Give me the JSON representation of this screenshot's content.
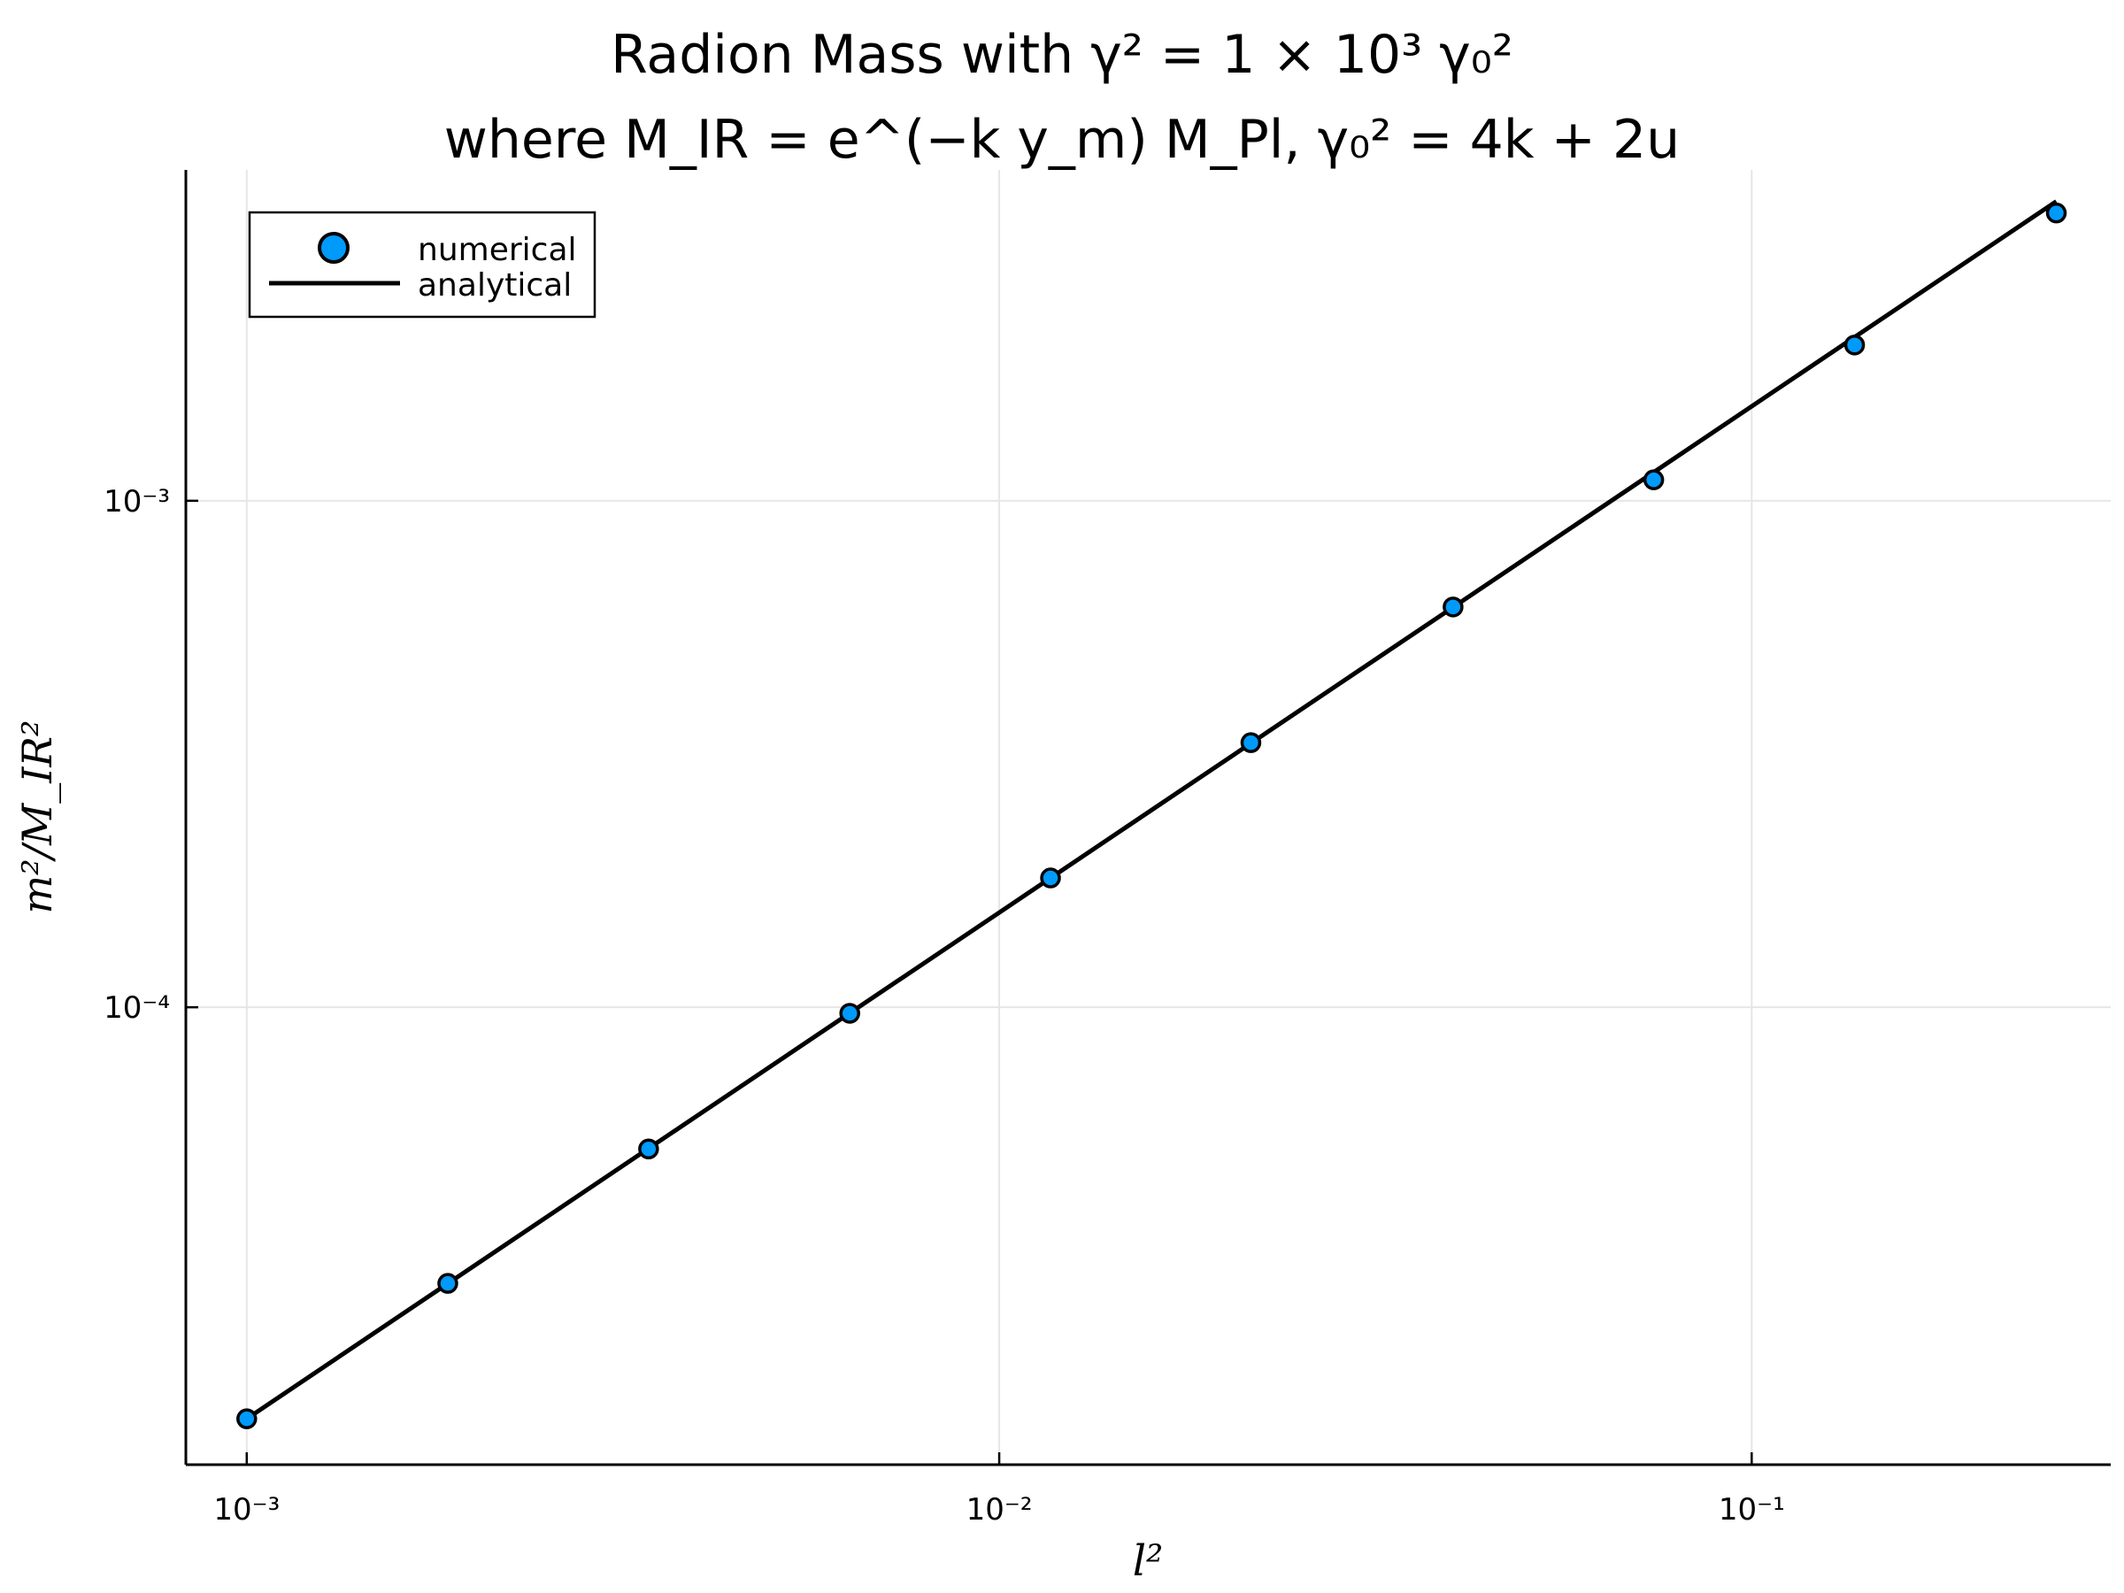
{
  "chart_data": {
    "type": "scatter",
    "title_line1": "Radion Mass with γ² = 1 × 10³ γ₀²",
    "title_line2": "where M_IR = e^(−k y_m) M_Pl,   γ₀² = 4k + 2u",
    "xlabel": "l²",
    "ylabel": "m²/M_IR²",
    "xscale": "log",
    "yscale": "log",
    "xlim": [
      0.00083,
      0.3
    ],
    "ylim": [
      1.25e-05,
      0.0045
    ],
    "x_ticks": [
      {
        "value": 0.001,
        "label": "10⁻³"
      },
      {
        "value": 0.01,
        "label": "10⁻²"
      },
      {
        "value": 0.1,
        "label": "10⁻¹"
      }
    ],
    "y_ticks": [
      {
        "value": 0.0001,
        "label": "10⁻⁴"
      },
      {
        "value": 0.001,
        "label": "10⁻³"
      }
    ],
    "grid": true,
    "legend_placement": "top-left",
    "series": [
      {
        "name": "numerical",
        "kind": "scatter",
        "color": "#009AFA",
        "x": [
          0.001,
          0.00185,
          0.00342,
          0.00633,
          0.0117,
          0.0216,
          0.0401,
          0.0741,
          0.137,
          0.254
        ],
        "y": [
          1.54e-05,
          2.85e-05,
          5.25e-05,
          9.73e-05,
          0.00018,
          0.000333,
          0.000617,
          0.0011,
          0.00203,
          0.0037
        ]
      },
      {
        "name": "analytical",
        "kind": "line",
        "color": "#000000",
        "x": [
          0.001,
          0.254
        ],
        "y": [
          1.54e-05,
          0.0039
        ]
      }
    ]
  }
}
